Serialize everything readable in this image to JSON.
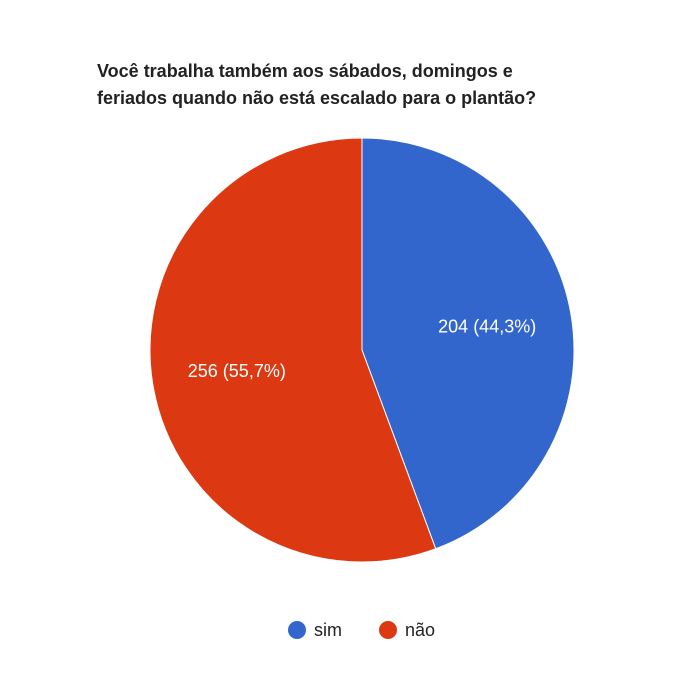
{
  "chart_data": {
    "type": "pie",
    "title": [
      "Você trabalha também aos sábados, domingos e",
      "feriados quando não está escalado para o plantão?"
    ],
    "categories": [
      "sim",
      "não"
    ],
    "values": [
      204,
      256
    ],
    "value_labels": [
      "204 (44,3%)",
      "256 (55,7%)"
    ],
    "colors": [
      "#3366cc",
      "#dc3912"
    ],
    "legend": "bottom"
  }
}
